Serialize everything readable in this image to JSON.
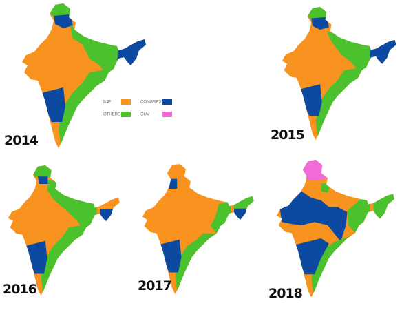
{
  "maps": [
    {
      "year": "2014"
    },
    {
      "year": "2015"
    },
    {
      "year": "2016"
    },
    {
      "year": "2017"
    },
    {
      "year": "2018"
    }
  ],
  "legend": [
    {
      "label": "BJP",
      "color": "#f7931e"
    },
    {
      "label": "CONGRESS",
      "color": "#0b4aa0"
    },
    {
      "label": "OTHERS",
      "color": "#4cc12e"
    },
    {
      "label": "GUV",
      "color": "#f06ad8"
    }
  ]
}
